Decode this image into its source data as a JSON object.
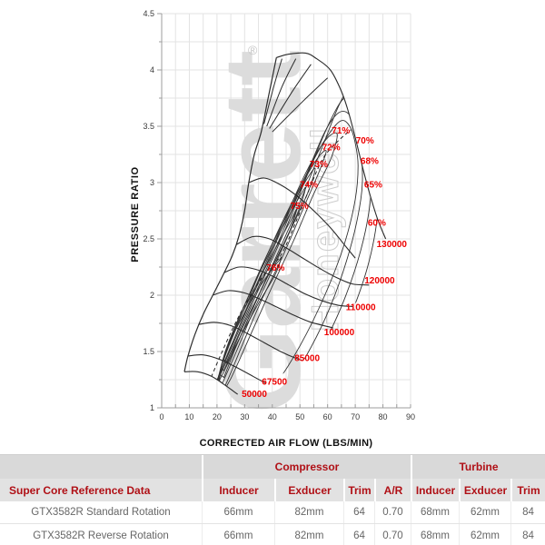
{
  "colors": {
    "chart_label_red": "#ee0000",
    "table_header_red": "#b01016",
    "curve_black": "#2b2b2b",
    "grid_gray": "#e3e3e3",
    "axis_gray": "#9c9c9c",
    "tick_text": "#3a3a3a",
    "watermark_gray": "#dcdcdc",
    "watermark_outline": "#cccccc",
    "table_group_bg": "#d9d9d9",
    "table_head_bg": "#e2e2e2",
    "body_text_gray": "#666666"
  },
  "chart_data": {
    "type": "line",
    "title": "",
    "xlabel": "CORRECTED AIR FLOW (LBS/MIN)",
    "ylabel": "PRESSURE RATIO",
    "xlim": [
      0,
      90
    ],
    "ylim": [
      1,
      4.5
    ],
    "xticks": [
      0,
      10,
      20,
      30,
      40,
      50,
      60,
      70,
      80,
      90
    ],
    "yticks": [
      1,
      1.5,
      2,
      2.5,
      3,
      3.5,
      4,
      4.5
    ],
    "grid": "on",
    "x_minor_step": 5,
    "y_minor_step": 0.25,
    "registered_mark": "®",
    "watermark_primary": "Garrett",
    "watermark_secondary": "Honeywell",
    "surge_line": [
      [
        8.2,
        1.32
      ],
      [
        9.5,
        1.46
      ],
      [
        12,
        1.65
      ],
      [
        15,
        1.83
      ],
      [
        18.5,
        2.0
      ],
      [
        22,
        2.17
      ],
      [
        25.5,
        2.35
      ],
      [
        28,
        2.53
      ],
      [
        30,
        2.75
      ],
      [
        31.5,
        3.0
      ],
      [
        33.5,
        3.25
      ],
      [
        36,
        3.45
      ],
      [
        38.5,
        3.75
      ],
      [
        41.5,
        4.11
      ]
    ],
    "speed_lines": [
      {
        "rpm": 50000,
        "points": [
          [
            8.2,
            1.32
          ],
          [
            13,
            1.32
          ],
          [
            18,
            1.28
          ],
          [
            23,
            1.2
          ],
          [
            27.5,
            1.12
          ]
        ]
      },
      {
        "rpm": 67500,
        "points": [
          [
            9.5,
            1.46
          ],
          [
            15,
            1.47
          ],
          [
            21,
            1.43
          ],
          [
            27,
            1.36
          ],
          [
            33,
            1.28
          ],
          [
            37.5,
            1.22
          ]
        ]
      },
      {
        "rpm": 85000,
        "points": [
          [
            13.5,
            1.74
          ],
          [
            19,
            1.76
          ],
          [
            25,
            1.73
          ],
          [
            31,
            1.66
          ],
          [
            37,
            1.58
          ],
          [
            43,
            1.5
          ],
          [
            48.5,
            1.44
          ],
          [
            51,
            1.42
          ]
        ]
      },
      {
        "rpm": 100000,
        "points": [
          [
            18.5,
            2.0
          ],
          [
            24,
            2.04
          ],
          [
            30,
            2.02
          ],
          [
            36,
            1.96
          ],
          [
            42,
            1.89
          ],
          [
            48,
            1.82
          ],
          [
            54,
            1.76
          ],
          [
            62,
            1.71
          ]
        ]
      },
      {
        "rpm": 110000,
        "points": [
          [
            22.5,
            2.2
          ],
          [
            28,
            2.25
          ],
          [
            34,
            2.23
          ],
          [
            40,
            2.17
          ],
          [
            46,
            2.09
          ],
          [
            52,
            2.01
          ],
          [
            58,
            1.95
          ],
          [
            64,
            1.91
          ],
          [
            69,
            1.9
          ]
        ]
      },
      {
        "rpm": 120000,
        "points": [
          [
            27,
            2.45
          ],
          [
            33,
            2.52
          ],
          [
            39,
            2.5
          ],
          [
            45,
            2.42
          ],
          [
            51,
            2.33
          ],
          [
            57,
            2.24
          ],
          [
            63,
            2.16
          ],
          [
            69,
            2.1
          ],
          [
            75,
            2.09
          ]
        ]
      },
      {
        "rpm": 125000,
        "points": [
          [
            31.5,
            3.0
          ],
          [
            37,
            3.04
          ],
          [
            43,
            2.98
          ],
          [
            49,
            2.88
          ],
          [
            55,
            2.75
          ],
          [
            61,
            2.6
          ],
          [
            66,
            2.45
          ],
          [
            70,
            2.33
          ]
        ]
      },
      {
        "rpm": 130000,
        "points": [
          [
            41.5,
            4.11
          ],
          [
            46,
            4.14
          ],
          [
            52,
            4.15
          ],
          [
            56,
            4.1
          ],
          [
            61,
            4.0
          ],
          [
            65,
            3.81
          ],
          [
            67.5,
            3.63
          ],
          [
            70,
            3.4
          ],
          [
            72.5,
            3.15
          ],
          [
            75,
            2.92
          ],
          [
            78,
            2.68
          ],
          [
            81,
            2.5
          ]
        ]
      }
    ],
    "unlabeled_speed_segments": [
      [
        [
          37,
          3.52
        ],
        [
          40.5,
          3.85
        ],
        [
          43.5,
          4.1
        ]
      ],
      [
        [
          38,
          3.5
        ],
        [
          43.5,
          3.85
        ],
        [
          48.5,
          4.1
        ]
      ],
      [
        [
          39,
          3.48
        ],
        [
          47,
          3.8
        ],
        [
          54,
          4.05
        ]
      ],
      [
        [
          40,
          3.45
        ],
        [
          51,
          3.72
        ],
        [
          60,
          3.93
        ]
      ]
    ],
    "efficiency_contours": [
      {
        "efficiency_pct": 60,
        "points": [
          [
            17.5,
            1.08
          ],
          [
            26,
            1.5
          ],
          [
            36,
            2.05
          ],
          [
            47,
            2.65
          ],
          [
            57,
            3.25
          ],
          [
            64,
            3.68
          ],
          [
            69,
            3.88
          ],
          [
            73,
            3.82
          ],
          [
            76.5,
            3.55
          ],
          [
            78.5,
            3.2
          ],
          [
            78.5,
            2.8
          ],
          [
            75,
            2.3
          ],
          [
            68,
            1.8
          ],
          [
            58,
            1.3
          ],
          [
            47,
            0.95
          ],
          [
            36,
            0.72
          ],
          [
            27,
            0.7
          ]
        ]
      },
      {
        "efficiency_pct": 65,
        "points": [
          [
            18.5,
            1.15
          ],
          [
            26,
            1.55
          ],
          [
            35,
            2.05
          ],
          [
            45,
            2.6
          ],
          [
            54,
            3.15
          ],
          [
            61,
            3.55
          ],
          [
            66,
            3.75
          ],
          [
            70,
            3.72
          ],
          [
            73.5,
            3.5
          ],
          [
            75.5,
            3.2
          ],
          [
            75.5,
            2.85
          ],
          [
            72,
            2.4
          ],
          [
            65,
            1.9
          ],
          [
            55,
            1.4
          ],
          [
            45,
            1.02
          ],
          [
            35,
            0.78
          ],
          [
            26,
            0.75
          ]
        ]
      },
      {
        "efficiency_pct": 68,
        "points": [
          [
            19.5,
            1.22
          ],
          [
            26,
            1.58
          ],
          [
            34,
            2.02
          ],
          [
            43,
            2.52
          ],
          [
            52,
            3.05
          ],
          [
            59,
            3.45
          ],
          [
            64,
            3.62
          ],
          [
            68,
            3.6
          ],
          [
            71,
            3.42
          ],
          [
            72.5,
            3.15
          ],
          [
            72,
            2.85
          ],
          [
            68,
            2.4
          ],
          [
            61,
            1.9
          ],
          [
            52,
            1.45
          ],
          [
            42,
            1.08
          ],
          [
            33,
            0.85
          ],
          [
            25,
            0.82
          ]
        ]
      },
      {
        "efficiency_pct": 70,
        "points": [
          [
            20.5,
            1.28
          ],
          [
            26,
            1.6
          ],
          [
            33,
            2.0
          ],
          [
            41,
            2.45
          ],
          [
            49,
            2.9
          ],
          [
            56,
            3.25
          ],
          [
            61,
            3.45
          ],
          [
            65,
            3.55
          ],
          [
            68,
            3.5
          ],
          [
            70,
            3.35
          ],
          [
            71,
            3.15
          ],
          [
            70,
            2.85
          ],
          [
            66,
            2.45
          ],
          [
            59,
            2.0
          ],
          [
            50,
            1.55
          ],
          [
            41,
            1.2
          ],
          [
            32,
            0.95
          ],
          [
            24,
            0.9
          ]
        ]
      },
      {
        "efficiency_pct": 71,
        "points": [
          [
            20,
            1.15
          ],
          [
            22,
            1.36
          ],
          [
            27,
            1.66
          ],
          [
            33,
            2.02
          ],
          [
            40,
            2.42
          ],
          [
            46,
            2.76
          ],
          [
            52,
            3.08
          ],
          [
            57,
            3.3
          ],
          [
            61,
            3.42
          ],
          [
            63.5,
            3.42
          ],
          [
            61,
            3.2
          ],
          [
            55,
            2.9
          ],
          [
            48,
            2.5
          ],
          [
            40,
            2.08
          ],
          [
            32,
            1.64
          ],
          [
            25,
            1.26
          ],
          [
            21,
            1.1
          ]
        ]
      },
      {
        "efficiency_pct": 72,
        "points": [
          [
            20,
            1.2
          ],
          [
            22,
            1.4
          ],
          [
            26,
            1.65
          ],
          [
            32,
            2.0
          ],
          [
            38,
            2.35
          ],
          [
            45,
            2.72
          ],
          [
            51,
            3.0
          ],
          [
            56.5,
            3.22
          ],
          [
            59.5,
            3.28
          ],
          [
            57,
            3.1
          ],
          [
            51,
            2.76
          ],
          [
            44,
            2.36
          ],
          [
            36,
            1.95
          ],
          [
            29,
            1.55
          ],
          [
            23,
            1.2
          ],
          [
            20.8,
            1.16
          ]
        ]
      },
      {
        "efficiency_pct": 73,
        "points": [
          [
            20.3,
            1.25
          ],
          [
            22.5,
            1.45
          ],
          [
            26,
            1.68
          ],
          [
            31,
            1.97
          ],
          [
            37,
            2.3
          ],
          [
            43,
            2.6
          ],
          [
            49,
            2.88
          ],
          [
            53.5,
            3.07
          ],
          [
            55.5,
            3.12
          ],
          [
            53,
            2.92
          ],
          [
            47,
            2.6
          ],
          [
            40,
            2.22
          ],
          [
            33,
            1.85
          ],
          [
            27,
            1.5
          ],
          [
            22,
            1.22
          ]
        ]
      },
      {
        "efficiency_pct": 74,
        "points": [
          [
            20.8,
            1.3
          ],
          [
            23,
            1.5
          ],
          [
            27,
            1.75
          ],
          [
            32,
            2.02
          ],
          [
            37,
            2.28
          ],
          [
            42,
            2.52
          ],
          [
            47,
            2.75
          ],
          [
            50.5,
            2.9
          ],
          [
            52,
            2.95
          ],
          [
            49.5,
            2.75
          ],
          [
            44,
            2.45
          ],
          [
            38,
            2.15
          ],
          [
            32,
            1.83
          ],
          [
            26.5,
            1.52
          ],
          [
            22.5,
            1.27
          ]
        ]
      },
      {
        "efficiency_pct": 75,
        "points": [
          [
            21.5,
            1.36
          ],
          [
            24,
            1.55
          ],
          [
            28,
            1.78
          ],
          [
            33,
            2.03
          ],
          [
            38,
            2.27
          ],
          [
            43,
            2.5
          ],
          [
            47,
            2.68
          ],
          [
            48.8,
            2.76
          ],
          [
            46,
            2.55
          ],
          [
            41,
            2.3
          ],
          [
            35,
            2.0
          ],
          [
            29,
            1.7
          ],
          [
            25,
            1.47
          ],
          [
            22.5,
            1.33
          ]
        ]
      },
      {
        "efficiency_pct": 76,
        "points": [
          [
            22.5,
            1.43
          ],
          [
            25,
            1.6
          ],
          [
            29,
            1.8
          ],
          [
            34,
            2.02
          ],
          [
            39,
            2.2
          ],
          [
            42.5,
            2.31
          ],
          [
            43.2,
            2.33
          ],
          [
            41,
            2.18
          ],
          [
            36,
            1.97
          ],
          [
            31,
            1.75
          ],
          [
            26.5,
            1.54
          ],
          [
            23.5,
            1.4
          ]
        ]
      }
    ],
    "peak_efficiency_dashed_line": [
      [
        17,
        1.22
      ],
      [
        21,
        1.45
      ],
      [
        26,
        1.72
      ],
      [
        31,
        1.95
      ],
      [
        37,
        2.18
      ],
      [
        43,
        2.35
      ],
      [
        48,
        2.62
      ],
      [
        53,
        2.92
      ],
      [
        58,
        3.2
      ],
      [
        63,
        3.35
      ],
      [
        68.5,
        3.47
      ]
    ],
    "choke_edge": [
      [
        75,
        2.09
      ],
      [
        69,
        1.9
      ],
      [
        62,
        1.71
      ],
      [
        51,
        1.42
      ],
      [
        37.5,
        1.22
      ],
      [
        27.5,
        1.12
      ]
    ],
    "labels": [
      {
        "text": "71%",
        "x": 64.8,
        "y": 3.46
      },
      {
        "text": "70%",
        "x": 73.5,
        "y": 3.37
      },
      {
        "text": "72%",
        "x": 61.3,
        "y": 3.31
      },
      {
        "text": "68%",
        "x": 75.2,
        "y": 3.19
      },
      {
        "text": "73%",
        "x": 56.8,
        "y": 3.16
      },
      {
        "text": "74%",
        "x": 53.2,
        "y": 2.98
      },
      {
        "text": "65%",
        "x": 76.5,
        "y": 2.98
      },
      {
        "text": "75%",
        "x": 49.8,
        "y": 2.79
      },
      {
        "text": "60%",
        "x": 77.8,
        "y": 2.64
      },
      {
        "text": "76%",
        "x": 41.2,
        "y": 2.24
      },
      {
        "text": "130000",
        "x": 83.2,
        "y": 2.45
      },
      {
        "text": "120000",
        "x": 78.8,
        "y": 2.13
      },
      {
        "text": "110000",
        "x": 72.0,
        "y": 1.89
      },
      {
        "text": "100000",
        "x": 64.2,
        "y": 1.67
      },
      {
        "text": "85000",
        "x": 52.6,
        "y": 1.44
      },
      {
        "text": "67500",
        "x": 40.8,
        "y": 1.23
      },
      {
        "text": "50000",
        "x": 33.5,
        "y": 1.12
      }
    ]
  },
  "table": {
    "group_headers": [
      {
        "label": "",
        "cols": 1
      },
      {
        "label": "Compressor",
        "cols": 4
      },
      {
        "label": "Turbine",
        "cols": 3
      }
    ],
    "columns": [
      "Super Core Reference Data",
      "Inducer",
      "Exducer",
      "Trim",
      "A/R",
      "Inducer",
      "Exducer",
      "Trim"
    ],
    "rows": [
      [
        "GTX3582R Standard Rotation",
        "66mm",
        "82mm",
        "64",
        "0.70",
        "68mm",
        "62mm",
        "84"
      ],
      [
        "GTX3582R Reverse Rotation",
        "66mm",
        "82mm",
        "64",
        "0.70",
        "68mm",
        "62mm",
        "84"
      ]
    ]
  }
}
